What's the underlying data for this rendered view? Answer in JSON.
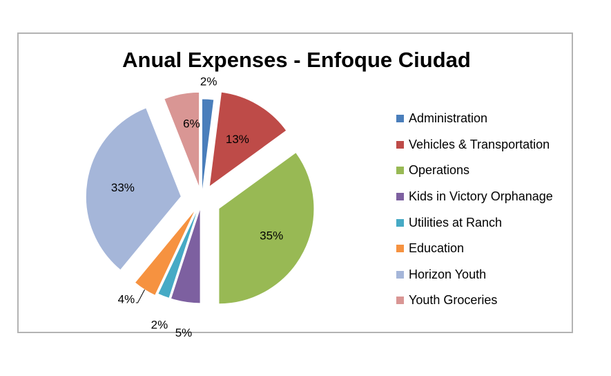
{
  "chart_data": {
    "type": "pie",
    "title": "Anual Expenses - Enfoque Ciudad",
    "legend_position": "right",
    "exploded": true,
    "slices": [
      {
        "label": "Administration",
        "value": 2,
        "display": "2%",
        "color": "#4a7ebb"
      },
      {
        "label": "Vehicles & Transportation",
        "value": 13,
        "display": "13%",
        "color": "#be4b48"
      },
      {
        "label": "Operations",
        "value": 35,
        "display": "35%",
        "color": "#98b954"
      },
      {
        "label": "Kids in Victory Orphanage",
        "value": 5,
        "display": "5%",
        "color": "#7d60a0"
      },
      {
        "label": "Utilities at Ranch",
        "value": 2,
        "display": "2%",
        "color": "#46aac5"
      },
      {
        "label": "Education",
        "value": 4,
        "display": "4%",
        "color": "#f69240"
      },
      {
        "label": "Horizon Youth",
        "value": 33,
        "display": "33%",
        "color": "#a5b6d9"
      },
      {
        "label": "Youth Groceries",
        "value": 6,
        "display": "6%",
        "color": "#d99694"
      }
    ]
  }
}
